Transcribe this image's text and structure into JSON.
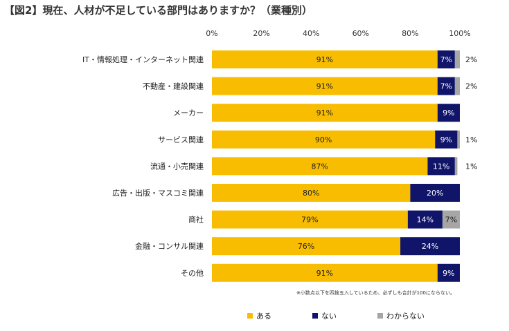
{
  "title": "【図2】現在、人材が不足している部門はありますか？（業種別）",
  "note": "※小数点以下を四捨五入しているため、必ずしも合計が100にならない。",
  "colors": {
    "aru": "#f8bd00",
    "nai": "#10156a",
    "wakaranai": "#a6a6a6"
  },
  "chart_data": {
    "type": "bar",
    "orientation": "horizontal",
    "stacked": true,
    "xlim": [
      0,
      100
    ],
    "xticks": [
      "0%",
      "20%",
      "40%",
      "60%",
      "80%",
      "100%"
    ],
    "categories": [
      "IT・情報処理・インターネット関連",
      "不動産・建設関連",
      "メーカー",
      "サービス関連",
      "流通・小売関連",
      "広告・出版・マスコミ関連",
      "商社",
      "金融・コンサル関連",
      "その他"
    ],
    "series": [
      {
        "name": "ある",
        "color": "#f8bd00",
        "values": [
          91,
          91,
          91,
          90,
          87,
          80,
          79,
          76,
          91
        ],
        "labels": [
          "91%",
          "91%",
          "91%",
          "90%",
          "87%",
          "80%",
          "79%",
          "76%",
          "91%"
        ]
      },
      {
        "name": "ない",
        "color": "#10156a",
        "values": [
          7,
          7,
          9,
          9,
          11,
          20,
          14,
          24,
          9
        ],
        "labels": [
          "7%",
          "7%",
          "9%",
          "9%",
          "11%",
          "20%",
          "14%",
          "24%",
          "9%"
        ]
      },
      {
        "name": "わからない",
        "color": "#a6a6a6",
        "values": [
          2,
          2,
          0,
          1,
          1,
          0,
          7,
          0,
          0
        ],
        "labels": [
          "2%",
          "2%",
          "",
          "1%",
          "1%",
          "",
          "7%",
          "",
          ""
        ]
      }
    ],
    "legend": "bottom"
  }
}
